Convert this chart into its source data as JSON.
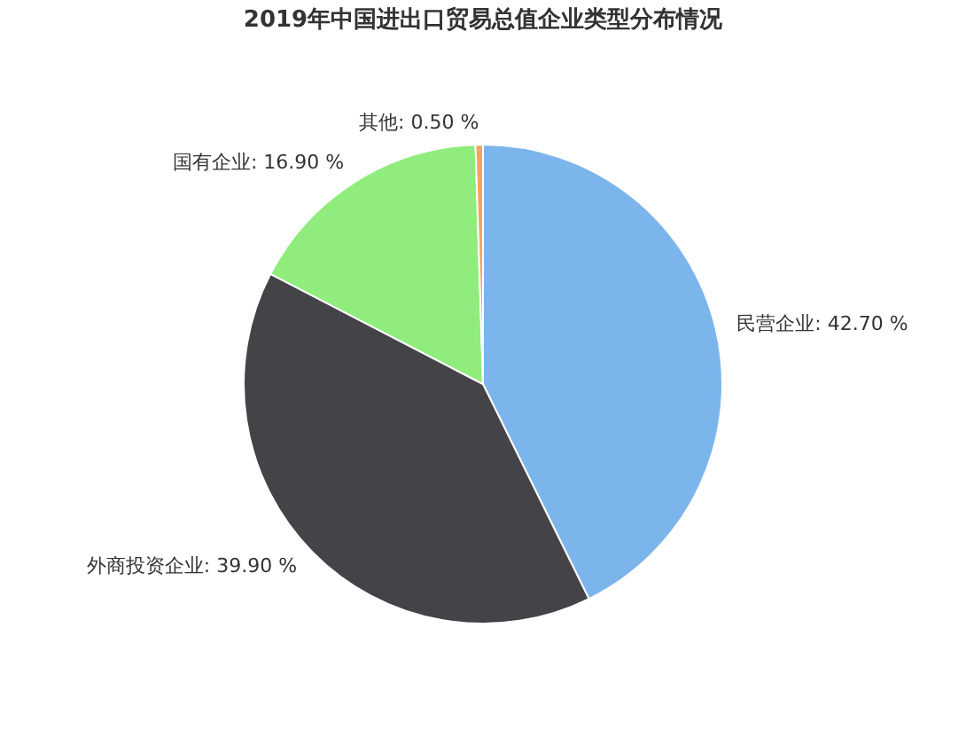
{
  "chart_data": {
    "type": "pie",
    "title": "2019年中国进出口贸易总值企业类型分布情况",
    "categories": [
      "民营企业",
      "外商投资企业",
      "国有企业",
      "其他"
    ],
    "values": [
      42.7,
      39.9,
      16.9,
      0.5
    ],
    "value_labels": [
      "42.70 %",
      "39.90 %",
      "16.90 %",
      "0.50 %"
    ],
    "colors": [
      "#7cb5ec",
      "#434348",
      "#90ed7d",
      "#f7a35c"
    ],
    "legend": false
  }
}
